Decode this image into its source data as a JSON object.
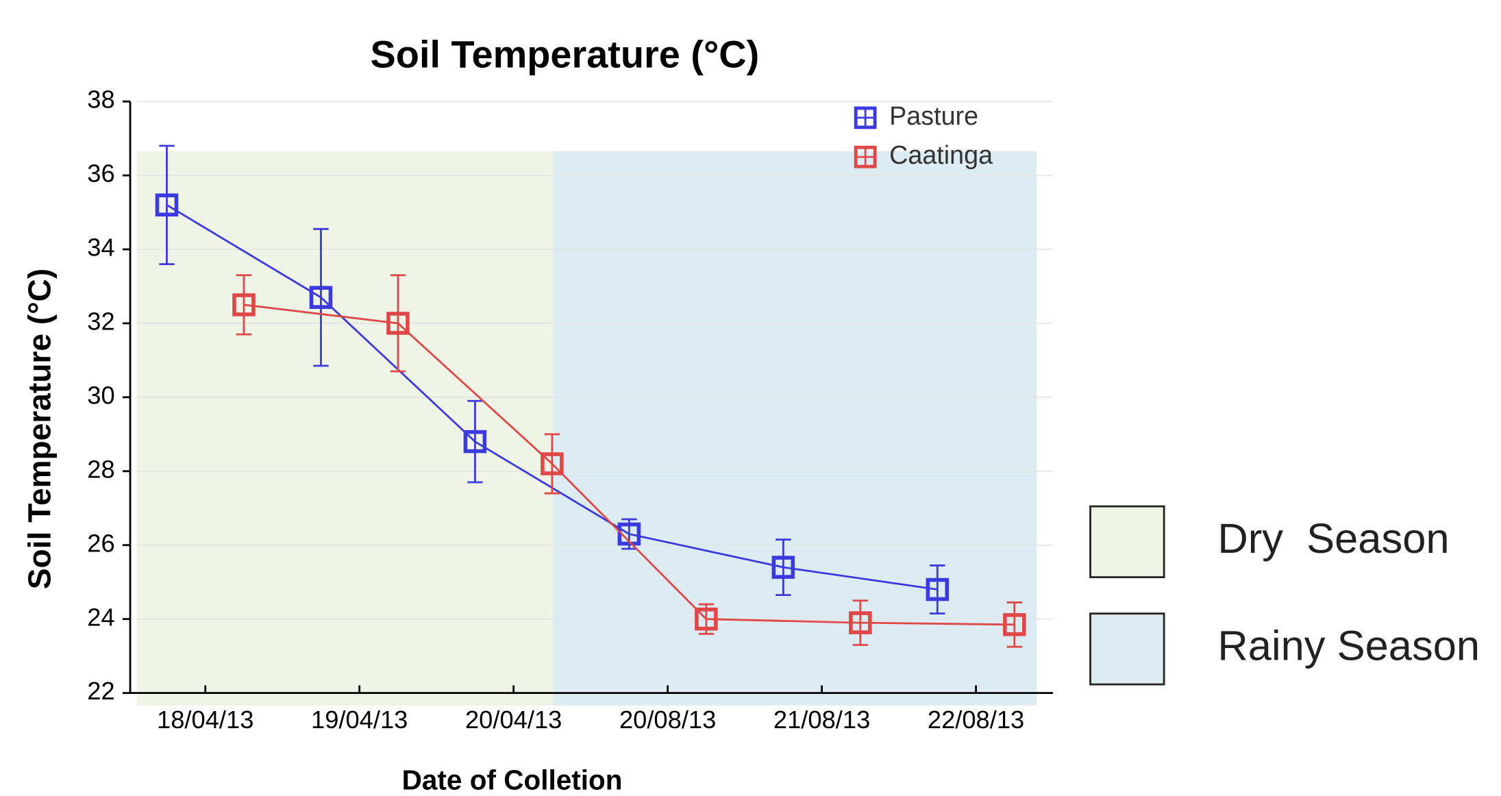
{
  "chart_data": {
    "type": "line",
    "title": "Soil Temperature (°C)",
    "y_label": "Soil Temperature (°C)",
    "x_label": "Date of Colletion",
    "categories": [
      "18/04/13",
      "19/04/13",
      "20/04/13",
      "20/08/13",
      "21/08/13",
      "22/08/13"
    ],
    "series": [
      {
        "name": "Pasture",
        "color": "#3a3ae0",
        "values": [
          35.2,
          32.7,
          28.8,
          26.3,
          25.4,
          24.8
        ],
        "errors": [
          1.6,
          1.85,
          1.1,
          0.4,
          0.75,
          0.65
        ]
      },
      {
        "name": "Caatinga",
        "color": "#e04848",
        "values": [
          32.5,
          32.0,
          28.2,
          24.0,
          23.9,
          23.85
        ],
        "errors": [
          0.8,
          1.3,
          0.8,
          0.4,
          0.6,
          0.6
        ]
      }
    ],
    "regions": [
      {
        "label": "Dry  Season",
        "color": "#eff4e6"
      },
      {
        "label": "Rainy Season",
        "color": "#dcecf2"
      }
    ],
    "ylim": [
      22,
      38
    ],
    "yticks": [
      22,
      24,
      26,
      28,
      30,
      32,
      34,
      36,
      38
    ],
    "grid": true,
    "legend": "upper right"
  }
}
